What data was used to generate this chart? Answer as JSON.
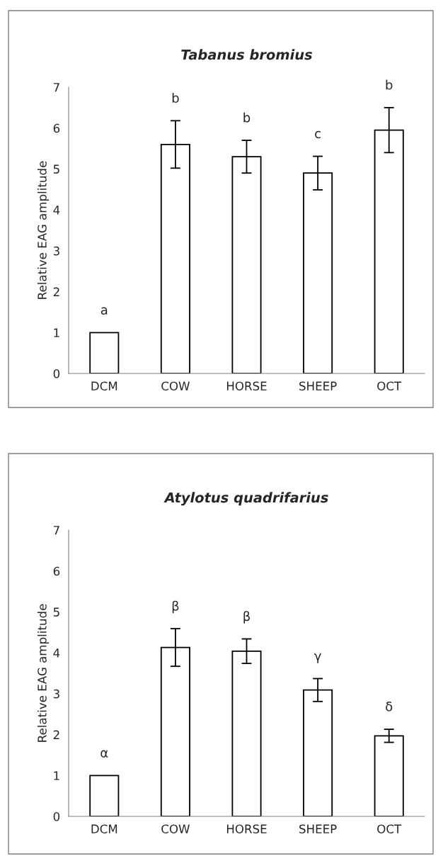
{
  "chart_data": [
    {
      "type": "bar",
      "title": "Tabanus bromius",
      "ylabel": "Relative EAG amplitude",
      "categories": [
        "DCM",
        "COW",
        "HORSE",
        "SHEEP",
        "OCT"
      ],
      "values": [
        1,
        5.6,
        5.3,
        4.9,
        5.95
      ],
      "errors": [
        null,
        0.58,
        0.4,
        0.41,
        0.55
      ],
      "color": "#ffffff",
      "ylim": [
        0,
        7
      ],
      "yticks": [
        0,
        1,
        2,
        3,
        4,
        5,
        6,
        7
      ],
      "grid": false,
      "legend": false,
      "annotations": [
        "a",
        "b",
        "b",
        "c",
        "b"
      ]
    },
    {
      "type": "bar",
      "title": "Atylotus quadrifarius",
      "ylabel": "Relative EAG amplitude",
      "categories": [
        "DCM",
        "COW",
        "HORSE",
        "SHEEP",
        "OCT"
      ],
      "values": [
        1,
        4.13,
        4.04,
        3.09,
        1.97
      ],
      "errors": [
        null,
        0.46,
        0.3,
        0.28,
        0.16
      ],
      "color": "#ffffff",
      "ylim": [
        0,
        7
      ],
      "yticks": [
        0,
        1,
        2,
        3,
        4,
        5,
        6,
        7
      ],
      "grid": false,
      "legend": false,
      "annotations": [
        "α",
        "β",
        "β",
        "γ",
        "δ"
      ]
    }
  ]
}
